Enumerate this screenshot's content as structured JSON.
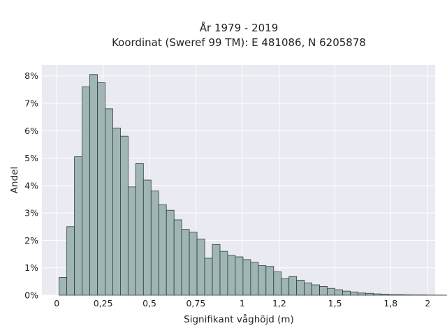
{
  "chart_data": {
    "type": "bar",
    "title_line1": "År 1979 - 2019",
    "title_line2": "Koordinat (Sweref 99 TM): E 481086, N 6205878",
    "xlabel": "Signifikant våghöjd (m)",
    "ylabel": "Andel",
    "xlim": [
      -0.08,
      2.04
    ],
    "ylim": [
      0,
      8.4
    ],
    "grid": true,
    "x_ticks": [
      0,
      0.25,
      0.5,
      0.75,
      1,
      1.2,
      1.5,
      1.8,
      2
    ],
    "x_tick_labels": [
      "0",
      "0,25",
      "0,5",
      "0,75",
      "1",
      "1,2",
      "1,5",
      "1,8",
      "2"
    ],
    "y_ticks": [
      0,
      1,
      2,
      3,
      4,
      5,
      6,
      7,
      8
    ],
    "y_tick_labels": [
      "0%",
      "1%",
      "2%",
      "3%",
      "4%",
      "5%",
      "6%",
      "7%",
      "8%"
    ],
    "bin_width": 0.0413,
    "bin_start": 0.0129,
    "values": [
      0.65,
      2.5,
      5.05,
      7.6,
      8.05,
      7.75,
      6.8,
      6.1,
      5.8,
      3.95,
      4.8,
      4.2,
      3.8,
      3.3,
      3.1,
      2.75,
      2.4,
      2.3,
      2.05,
      1.35,
      1.85,
      1.6,
      1.45,
      1.4,
      1.3,
      1.2,
      1.08,
      1.05,
      0.85,
      0.6,
      0.68,
      0.55,
      0.45,
      0.38,
      0.32,
      0.25,
      0.2,
      0.15,
      0.12,
      0.08,
      0.07,
      0.05,
      0.04,
      0.02,
      0.02,
      0.015,
      0.01,
      0.01,
      0.005,
      0.005,
      0.003,
      0.002
    ],
    "colors": {
      "bar_fill": "#9fb6b5",
      "bar_edge": "#2f3b3b",
      "plot_bg": "#eaeaf2",
      "grid": "#ffffff"
    }
  }
}
